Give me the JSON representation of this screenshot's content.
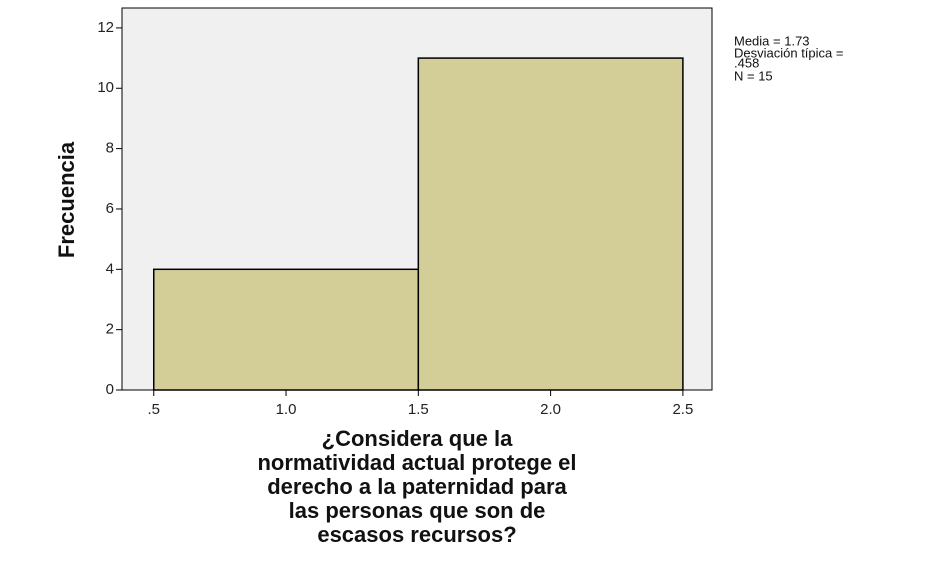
{
  "chart_data": {
    "type": "histogram",
    "bins": [
      0.5,
      1.5,
      2.5
    ],
    "values": [
      4,
      11
    ],
    "color": "#d3ce97",
    "background": "#f0f0f0",
    "xlim": [
      0.38,
      2.61
    ],
    "ylim": [
      0,
      12.66
    ],
    "xticks": [
      {
        "value": 0.5,
        "label": ".5"
      },
      {
        "value": 1,
        "label": "1.0"
      },
      1.5,
      {
        "value": 2,
        "label": "2.0"
      },
      2.5
    ],
    "yticks": [
      0,
      2,
      4,
      6,
      8,
      10,
      12
    ],
    "ylabel": "Frecuencia",
    "xlabel": [
      "¿Considera que la",
      "normatividad actual protege el",
      "derecho a la paternidad para",
      "las personas que son de",
      "escasos recursos?"
    ],
    "stats": [
      "Media = 1.73",
      "Desviación típica =",
      ".458",
      "N = 15"
    ]
  }
}
